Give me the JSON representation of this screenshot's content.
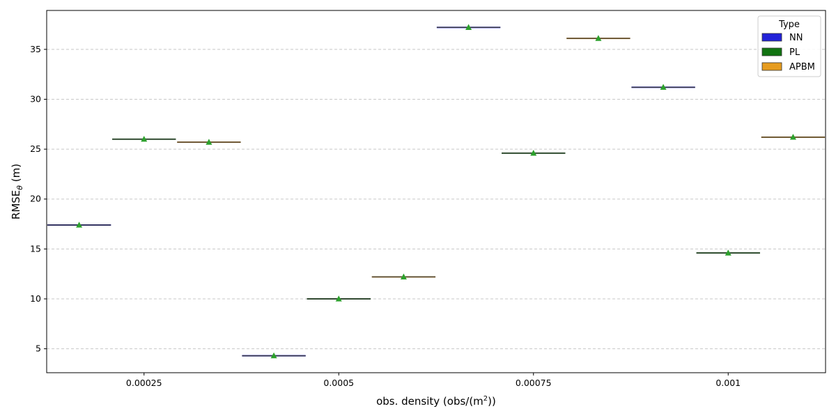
{
  "chart_data": {
    "type": "box",
    "xlabel": "obs. density (obs/(m",
    "xlabel_sup": "2",
    "xlabel_end": "))",
    "ylabel": "RMSE",
    "ylabel_sub": "θ",
    "ylabel_end": " (m)",
    "categories": [
      "0.00025",
      "0.0005",
      "0.00075",
      "0.001"
    ],
    "ylim": [
      2.6,
      38.9
    ],
    "yticks": [
      5,
      10,
      15,
      20,
      25,
      30,
      35
    ],
    "grid": "horizontal dashed",
    "legend": {
      "title": "Type",
      "placement": "top-right",
      "entries": [
        {
          "label": "NN",
          "color": "#2323d8"
        },
        {
          "label": "PL",
          "color": "#117311"
        },
        {
          "label": "APBM",
          "color": "#e69c1f"
        }
      ]
    },
    "mean_marker_color": "#2ca02c",
    "series": [
      {
        "name": "NN",
        "color": "#2323d8",
        "values": [
          17.4,
          4.3,
          37.2,
          31.2
        ]
      },
      {
        "name": "PL",
        "color": "#117311",
        "values": [
          26.0,
          10.0,
          24.6,
          14.6
        ]
      },
      {
        "name": "APBM",
        "color": "#e69c1f",
        "values": [
          25.7,
          12.2,
          36.1,
          26.2
        ]
      }
    ]
  }
}
